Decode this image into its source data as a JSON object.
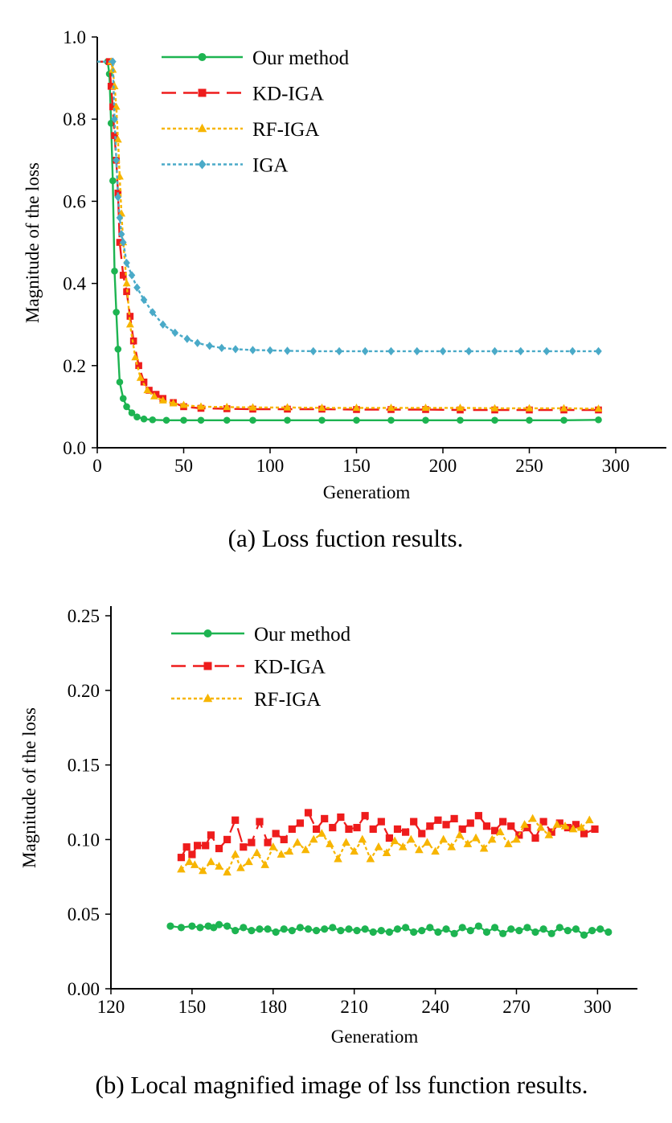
{
  "colors": {
    "our_method": "#1db451",
    "kd_iga": "#ee1c1c",
    "rf_iga": "#f7b500",
    "iga": "#4aaac8"
  },
  "chart_data": [
    {
      "type": "line",
      "caption": "(a)  Loss fuction results.",
      "xlabel": "Generatiom",
      "ylabel": "Magnitude of the loss",
      "xlim": [
        0,
        320
      ],
      "ylim": [
        0,
        1.0
      ],
      "xticks": [
        0,
        50,
        100,
        150,
        200,
        250,
        300
      ],
      "xtick_labels": [
        "0",
        "50",
        "100",
        "150",
        "200",
        "250",
        "300"
      ],
      "yticks": [
        0,
        0.2,
        0.4,
        0.6,
        0.8,
        1.0
      ],
      "ytick_labels": [
        "0.0",
        "0.2",
        "0.4",
        "0.6",
        "0.8",
        "1.0"
      ],
      "grid": false,
      "legend_position": "top-center",
      "series": [
        {
          "name": "Our method",
          "color_key": "our_method",
          "marker": "circle",
          "dash": "solid",
          "x": [
            0,
            6,
            7,
            8,
            9,
            10,
            11,
            12,
            13,
            15,
            17,
            20,
            23,
            27,
            32,
            40,
            50,
            60,
            75,
            90,
            110,
            130,
            150,
            170,
            190,
            210,
            230,
            250,
            270,
            290
          ],
          "y": [
            0.94,
            0.94,
            0.91,
            0.79,
            0.65,
            0.43,
            0.33,
            0.24,
            0.16,
            0.12,
            0.1,
            0.085,
            0.075,
            0.07,
            0.068,
            0.067,
            0.067,
            0.067,
            0.067,
            0.067,
            0.067,
            0.067,
            0.067,
            0.067,
            0.067,
            0.067,
            0.067,
            0.067,
            0.067,
            0.068
          ]
        },
        {
          "name": "KD-IGA",
          "color_key": "kd_iga",
          "marker": "square",
          "dash": "long-dash",
          "x": [
            0,
            7,
            8,
            9,
            10,
            11,
            12,
            13,
            15,
            17,
            19,
            21,
            24,
            27,
            30,
            34,
            38,
            44,
            50,
            60,
            75,
            90,
            110,
            130,
            150,
            170,
            190,
            210,
            230,
            250,
            270,
            290
          ],
          "y": [
            0.94,
            0.94,
            0.88,
            0.83,
            0.76,
            0.7,
            0.62,
            0.5,
            0.42,
            0.38,
            0.32,
            0.26,
            0.2,
            0.16,
            0.14,
            0.13,
            0.12,
            0.11,
            0.1,
            0.096,
            0.095,
            0.094,
            0.094,
            0.094,
            0.093,
            0.093,
            0.093,
            0.092,
            0.092,
            0.092,
            0.092,
            0.092
          ]
        },
        {
          "name": "RF-IGA",
          "color_key": "rf_iga",
          "marker": "triangle",
          "dash": "dotted",
          "x": [
            0,
            8,
            9,
            10,
            11,
            12,
            13,
            14,
            15,
            17,
            19,
            22,
            25,
            29,
            33,
            38,
            44,
            50,
            60,
            75,
            90,
            110,
            130,
            150,
            170,
            190,
            210,
            230,
            250,
            270,
            290
          ],
          "y": [
            0.94,
            0.94,
            0.92,
            0.88,
            0.83,
            0.75,
            0.66,
            0.57,
            0.5,
            0.4,
            0.3,
            0.22,
            0.17,
            0.14,
            0.125,
            0.115,
            0.108,
            0.104,
            0.1,
            0.099,
            0.098,
            0.098,
            0.097,
            0.097,
            0.097,
            0.097,
            0.097,
            0.096,
            0.096,
            0.096,
            0.095
          ]
        },
        {
          "name": "IGA",
          "color_key": "iga",
          "marker": "diamond",
          "dash": "dotted",
          "x": [
            0,
            9,
            10,
            11,
            12,
            13,
            14,
            15,
            17,
            20,
            23,
            27,
            32,
            38,
            45,
            52,
            58,
            65,
            72,
            80,
            90,
            100,
            110,
            125,
            140,
            155,
            170,
            185,
            200,
            215,
            230,
            245,
            260,
            275,
            290
          ],
          "y": [
            0.94,
            0.94,
            0.8,
            0.7,
            0.61,
            0.56,
            0.52,
            0.5,
            0.45,
            0.42,
            0.39,
            0.36,
            0.33,
            0.3,
            0.28,
            0.265,
            0.255,
            0.248,
            0.243,
            0.24,
            0.238,
            0.237,
            0.236,
            0.235,
            0.235,
            0.235,
            0.235,
            0.235,
            0.235,
            0.235,
            0.235,
            0.235,
            0.235,
            0.235,
            0.235
          ]
        }
      ]
    },
    {
      "type": "scatter",
      "caption": "(b)  Local magnified image of lss function results.",
      "xlabel": "Generatiom",
      "ylabel": "Magnitude of the loss",
      "xlim": [
        120,
        310
      ],
      "ylim": [
        0,
        0.25
      ],
      "xticks": [
        120,
        150,
        180,
        210,
        240,
        270,
        300
      ],
      "xtick_labels": [
        "120",
        "150",
        "180",
        "210",
        "240",
        "270",
        "300"
      ],
      "yticks": [
        0,
        0.05,
        0.1,
        0.15,
        0.2,
        0.25
      ],
      "ytick_labels": [
        "0.00",
        "0.05",
        "0.10",
        "0.15",
        "0.20",
        "0.25"
      ],
      "grid": false,
      "legend_position": "top-left",
      "series": [
        {
          "name": "Our method",
          "color_key": "our_method",
          "marker": "circle",
          "dash": "solid",
          "x": [
            142,
            146,
            150,
            153,
            156,
            158,
            160,
            163,
            166,
            169,
            172,
            175,
            178,
            181,
            184,
            187,
            190,
            193,
            196,
            199,
            202,
            205,
            208,
            211,
            214,
            217,
            220,
            223,
            226,
            229,
            232,
            235,
            238,
            241,
            244,
            247,
            250,
            253,
            256,
            259,
            262,
            265,
            268,
            271,
            274,
            277,
            280,
            283,
            286,
            289,
            292,
            295,
            298,
            301,
            304
          ],
          "y": [
            0.042,
            0.041,
            0.042,
            0.041,
            0.042,
            0.041,
            0.043,
            0.042,
            0.039,
            0.041,
            0.039,
            0.04,
            0.04,
            0.038,
            0.04,
            0.039,
            0.041,
            0.04,
            0.039,
            0.04,
            0.041,
            0.039,
            0.04,
            0.039,
            0.04,
            0.038,
            0.039,
            0.038,
            0.04,
            0.041,
            0.038,
            0.039,
            0.041,
            0.038,
            0.04,
            0.037,
            0.041,
            0.039,
            0.042,
            0.038,
            0.041,
            0.037,
            0.04,
            0.039,
            0.041,
            0.038,
            0.04,
            0.037,
            0.041,
            0.039,
            0.04,
            0.036,
            0.039,
            0.04,
            0.038
          ]
        },
        {
          "name": "KD-IGA",
          "color_key": "kd_iga",
          "marker": "square",
          "dash": "long-dash",
          "x": [
            146,
            148,
            150,
            152,
            155,
            157,
            160,
            163,
            166,
            169,
            172,
            175,
            178,
            181,
            184,
            187,
            190,
            193,
            196,
            199,
            202,
            205,
            208,
            211,
            214,
            217,
            220,
            223,
            226,
            229,
            232,
            235,
            238,
            241,
            244,
            247,
            250,
            253,
            256,
            259,
            262,
            265,
            268,
            271,
            274,
            277,
            280,
            283,
            286,
            289,
            292,
            295,
            299
          ],
          "y": [
            0.088,
            0.095,
            0.09,
            0.096,
            0.096,
            0.103,
            0.094,
            0.1,
            0.113,
            0.095,
            0.098,
            0.112,
            0.098,
            0.104,
            0.1,
            0.107,
            0.111,
            0.118,
            0.107,
            0.114,
            0.108,
            0.115,
            0.107,
            0.108,
            0.116,
            0.107,
            0.112,
            0.101,
            0.107,
            0.105,
            0.112,
            0.104,
            0.109,
            0.113,
            0.11,
            0.114,
            0.107,
            0.111,
            0.116,
            0.109,
            0.106,
            0.112,
            0.109,
            0.103,
            0.108,
            0.101,
            0.112,
            0.105,
            0.111,
            0.108,
            0.11,
            0.104,
            0.107
          ]
        },
        {
          "name": "RF-IGA",
          "color_key": "rf_iga",
          "marker": "triangle",
          "dash": "dotted",
          "x": [
            146,
            149,
            151,
            154,
            157,
            160,
            163,
            166,
            168,
            171,
            174,
            177,
            180,
            183,
            186,
            189,
            192,
            195,
            198,
            201,
            204,
            207,
            210,
            213,
            216,
            219,
            222,
            225,
            228,
            231,
            234,
            237,
            240,
            243,
            246,
            249,
            252,
            255,
            258,
            261,
            264,
            267,
            270,
            273,
            276,
            279,
            282,
            285,
            288,
            291,
            294,
            297
          ],
          "y": [
            0.08,
            0.085,
            0.083,
            0.079,
            0.085,
            0.082,
            0.078,
            0.09,
            0.081,
            0.085,
            0.091,
            0.083,
            0.095,
            0.09,
            0.092,
            0.098,
            0.093,
            0.1,
            0.104,
            0.097,
            0.087,
            0.098,
            0.092,
            0.1,
            0.087,
            0.095,
            0.091,
            0.099,
            0.095,
            0.1,
            0.093,
            0.098,
            0.092,
            0.1,
            0.095,
            0.103,
            0.097,
            0.101,
            0.094,
            0.1,
            0.105,
            0.097,
            0.1,
            0.11,
            0.114,
            0.108,
            0.103,
            0.11,
            0.109,
            0.107,
            0.108,
            0.113
          ]
        }
      ]
    }
  ]
}
